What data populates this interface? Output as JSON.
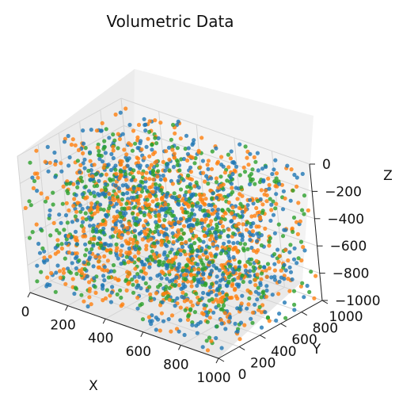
{
  "chart_data": {
    "type": "scatter",
    "projection": "3d",
    "title": "Volumetric Data",
    "xlabel": "X",
    "ylabel": "Y",
    "zlabel": "Z",
    "xlim": [
      0,
      1000
    ],
    "ylim": [
      0,
      1000
    ],
    "zlim": [
      -1000,
      0
    ],
    "x_ticks": [
      "0",
      "200",
      "400",
      "600",
      "800",
      "1000"
    ],
    "y_ticks": [
      "0",
      "200",
      "400",
      "600",
      "800",
      "1000"
    ],
    "z_ticks": [
      "−1000",
      "−800",
      "−600",
      "−400",
      "−200",
      "0"
    ],
    "grid": true,
    "legend": "none",
    "series": [
      {
        "color": "#1f77b4",
        "points_approx": 800,
        "distribution": "uniform in volume"
      },
      {
        "color": "#ff7f0e",
        "points_approx": 800,
        "distribution": "uniform in volume"
      },
      {
        "color": "#2ca02c",
        "points_approx": 600,
        "distribution": "uniform in volume"
      }
    ]
  }
}
